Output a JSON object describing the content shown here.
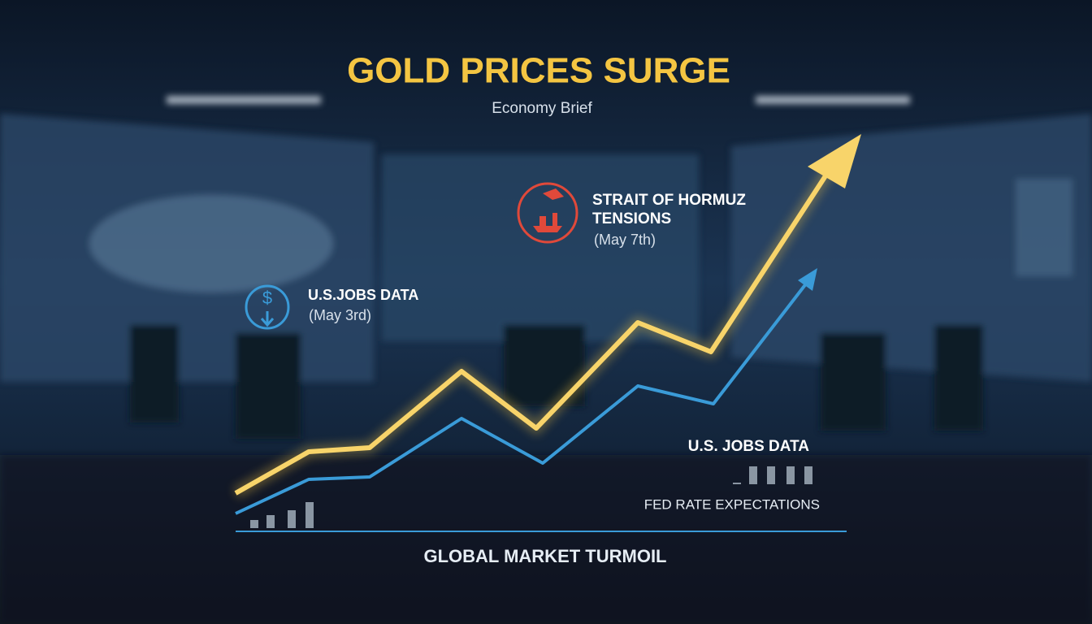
{
  "header": {
    "title": "GOLD PRICES SURGE",
    "subtitle": "Economy Brief"
  },
  "annotations": [
    {
      "label_lines": [
        "STRAIT OF HORMUZ",
        "TENSIONS"
      ],
      "date": "(May 7th)"
    },
    {
      "label": "U.S.JOBS DATA",
      "date": "(May 3rd)"
    },
    {
      "label": "U.S. JOBS DATA"
    },
    {
      "label": "FED RATE EXPECTATIONS"
    }
  ],
  "footer": {
    "caption": "GLOBAL MARKET TURMOIL"
  }
}
